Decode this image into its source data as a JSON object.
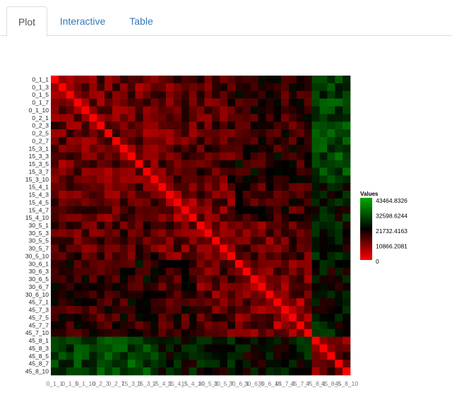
{
  "tabs": [
    {
      "label": "Plot",
      "active": true
    },
    {
      "label": "Interactive",
      "active": false
    },
    {
      "label": "Table",
      "active": false
    }
  ],
  "chart_data": {
    "type": "heatmap",
    "row_labels": [
      "0_1_1",
      "0_1_3",
      "0_1_5",
      "0_1_7",
      "0_1_10",
      "0_2_1",
      "0_2_3",
      "0_2_5",
      "0_2_7",
      "15_3_1",
      "15_3_3",
      "15_3_5",
      "15_3_7",
      "15_3_10",
      "15_4_1",
      "15_4_3",
      "15_4_5",
      "15_4_7",
      "15_4_10",
      "30_5_1",
      "30_5_3",
      "30_5_5",
      "30_5_7",
      "30_5_10",
      "30_6_1",
      "30_6_3",
      "30_6_5",
      "30_6_7",
      "30_6_10",
      "45_7_1",
      "45_7_3",
      "45_7_5",
      "45_7_7",
      "45_7_10",
      "45_8_1",
      "45_8_3",
      "45_8_5",
      "45_8_7",
      "45_8_10"
    ],
    "col_tick_labels": [
      "0_1_1",
      "0_1_5",
      "0_1_10",
      "0_2_3",
      "0_2_7",
      "15_3_3",
      "15_3_7",
      "15_4_1",
      "15_4_5",
      "15_4_10",
      "30_5_3",
      "30_5_7",
      "30_6_1",
      "30_6_5",
      "30_6_10",
      "45_7_3",
      "45_7_7",
      "45_8_1",
      "45_8_5",
      "45_8_10"
    ],
    "legend": {
      "title": "Values",
      "breaks": [
        "43464.8326",
        "32598.6244",
        "21732.4163",
        "10866.2081",
        "0"
      ],
      "min": 0,
      "max": 43464.8326
    },
    "colors": {
      "low": "#ff0000",
      "mid": "#000000",
      "high": "#00aa00"
    },
    "blocks": [
      0,
      9,
      14,
      19,
      24,
      29,
      34
    ],
    "block_means": [
      [
        0.3,
        0.28,
        0.3,
        0.34,
        0.42,
        0.4,
        0.68
      ],
      [
        0.28,
        0.3,
        0.32,
        0.36,
        0.44,
        0.42,
        0.7
      ],
      [
        0.3,
        0.32,
        0.22,
        0.3,
        0.38,
        0.4,
        0.55
      ],
      [
        0.34,
        0.36,
        0.3,
        0.26,
        0.3,
        0.34,
        0.54
      ],
      [
        0.42,
        0.44,
        0.38,
        0.3,
        0.24,
        0.28,
        0.52
      ],
      [
        0.4,
        0.42,
        0.4,
        0.34,
        0.28,
        0.22,
        0.56
      ],
      [
        0.68,
        0.7,
        0.55,
        0.54,
        0.52,
        0.56,
        0.3
      ]
    ]
  }
}
